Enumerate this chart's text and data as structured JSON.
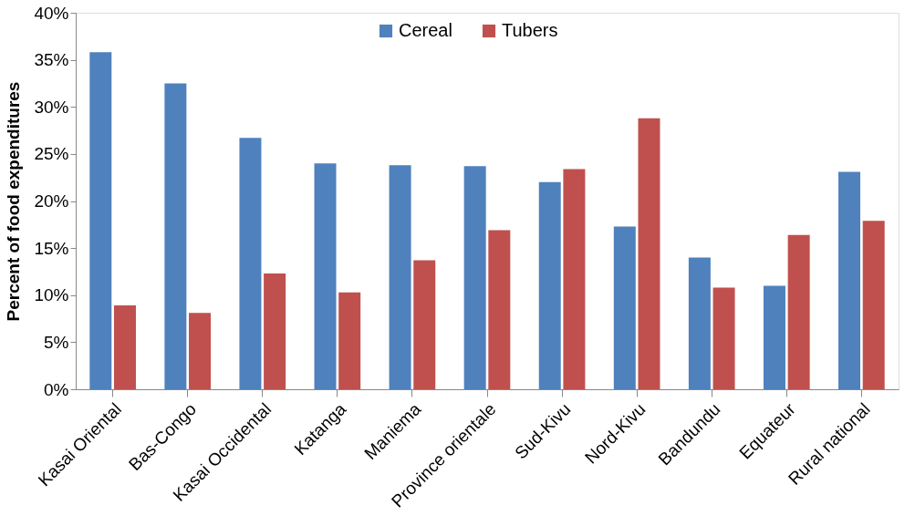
{
  "chart_data": {
    "type": "bar",
    "ylabel": "Percent of food expenditures",
    "categories": [
      "Kasai Oriental",
      "Bas-Congo",
      "Kasai Occidental",
      "Katanga",
      "Maniema",
      "Province orientale",
      "Sud-Kivu",
      "Nord-Kivu",
      "Bandundu",
      "Equateur",
      "Rural national"
    ],
    "series": [
      {
        "name": "Cereal",
        "color": "#4f81bd",
        "values": [
          35.8,
          32.5,
          26.7,
          24.0,
          23.8,
          23.7,
          22.0,
          17.3,
          14.0,
          11.0,
          23.1
        ]
      },
      {
        "name": "Tubers",
        "color": "#c0504d",
        "values": [
          8.9,
          8.1,
          12.3,
          10.3,
          13.7,
          16.9,
          23.4,
          28.8,
          10.8,
          16.4,
          17.9
        ]
      }
    ],
    "ylim": [
      0,
      40
    ],
    "yticks": [
      {
        "value": 0,
        "label": "0%"
      },
      {
        "value": 5,
        "label": "5%"
      },
      {
        "value": 10,
        "label": "10%"
      },
      {
        "value": 15,
        "label": "15%"
      },
      {
        "value": 20,
        "label": "20%"
      },
      {
        "value": 25,
        "label": "25%"
      },
      {
        "value": 30,
        "label": "30%"
      },
      {
        "value": 35,
        "label": "35%"
      },
      {
        "value": 40,
        "label": "40%"
      }
    ],
    "grid": false,
    "legend": "top"
  }
}
